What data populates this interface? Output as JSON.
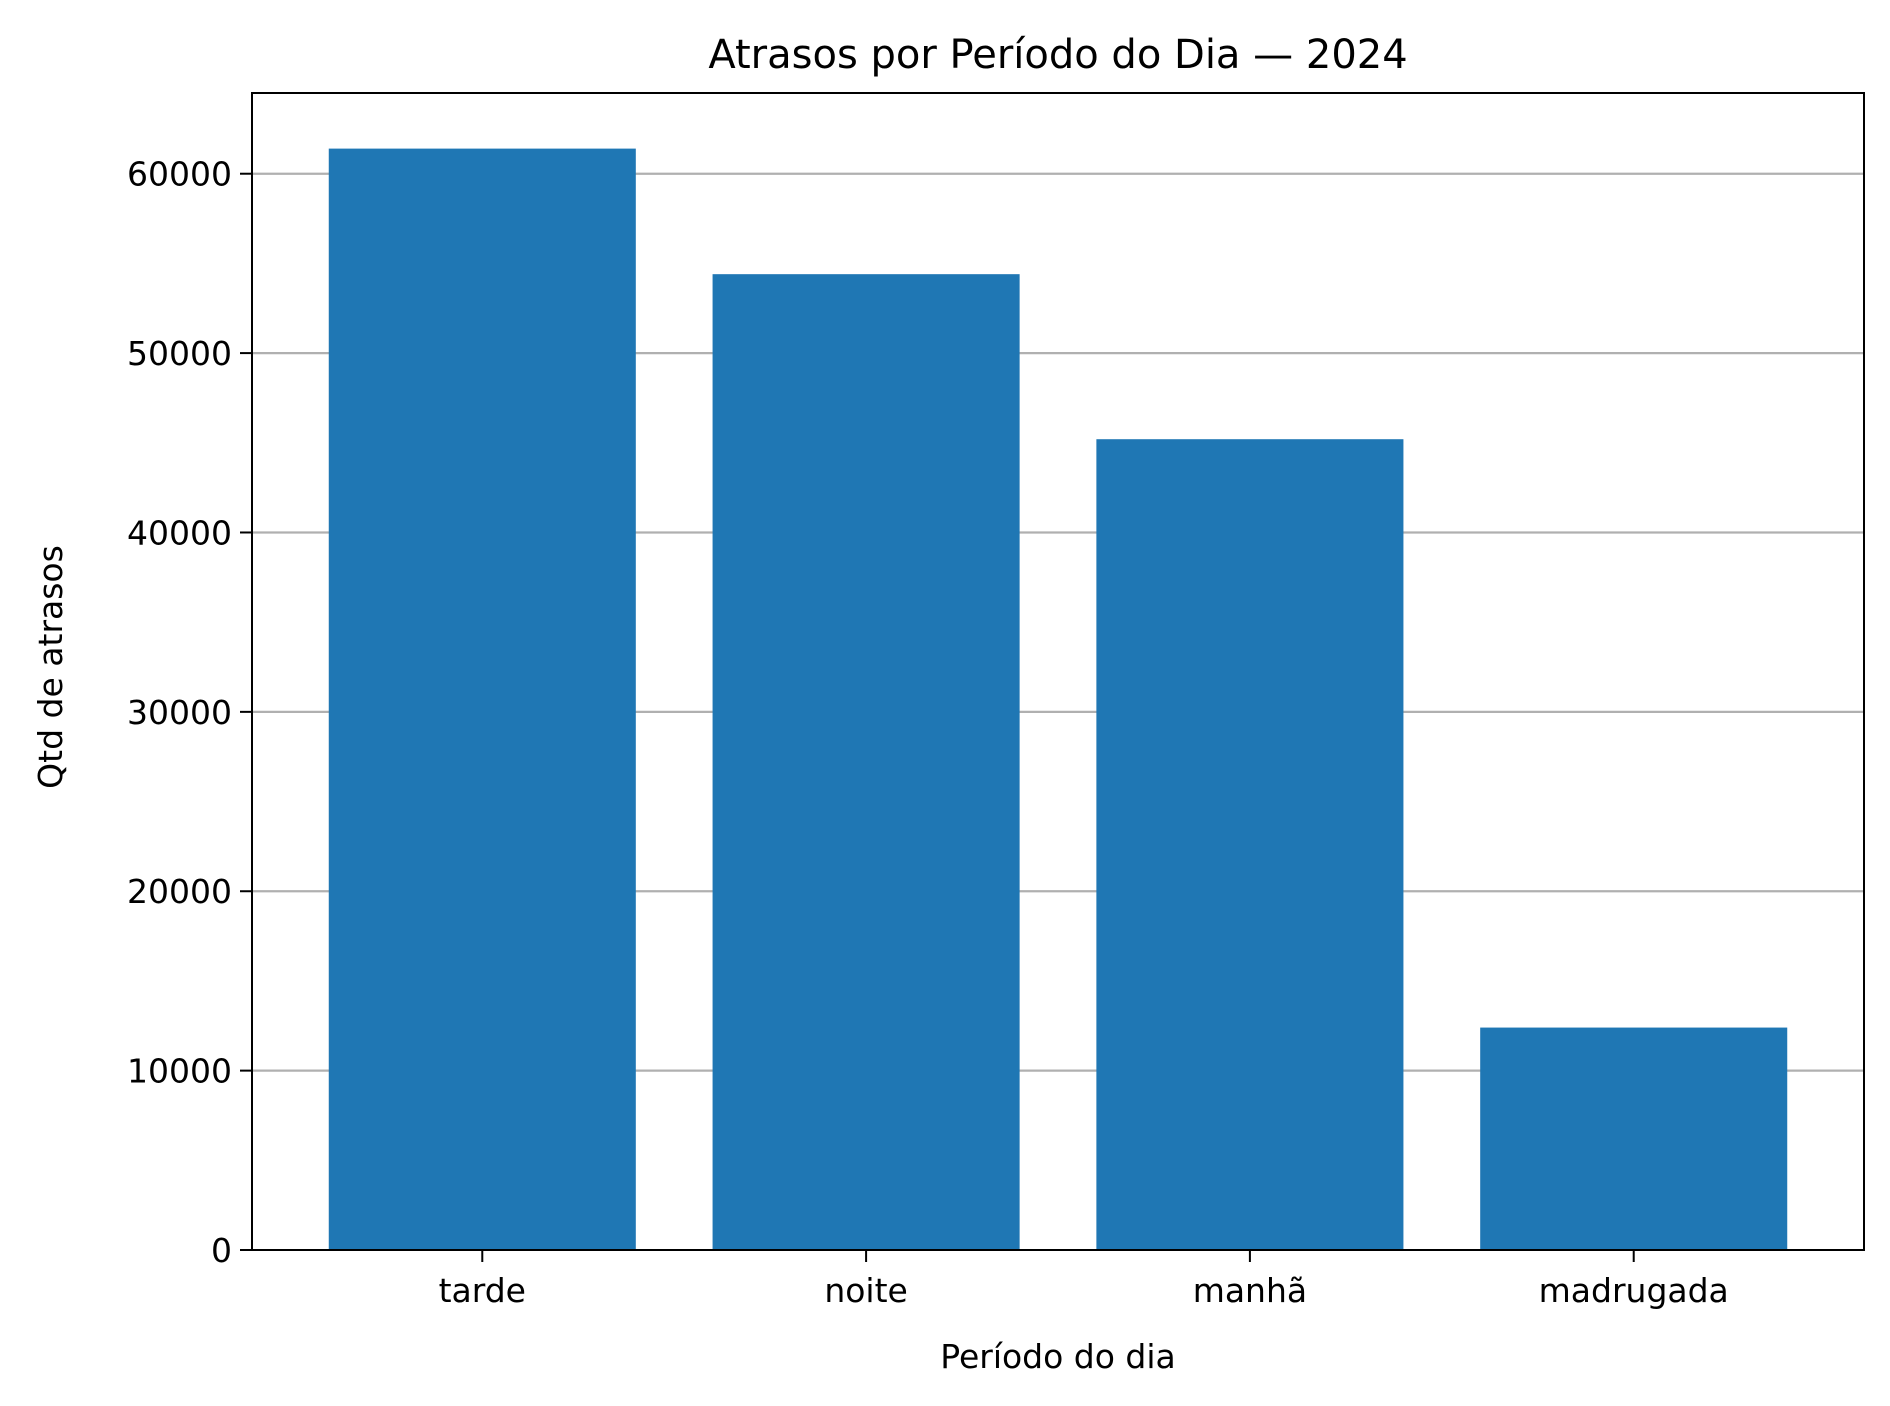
{
  "chart_data": {
    "type": "bar",
    "title": "Atrasos por Período do Dia — 2024",
    "xlabel": "Período do dia",
    "ylabel": "Qtd de atrasos",
    "categories": [
      "tarde",
      "noite",
      "manhã",
      "madrugada"
    ],
    "values": [
      61400,
      54400,
      45200,
      12400
    ],
    "ylim": [
      0,
      64500
    ],
    "yticks": [
      0,
      10000,
      20000,
      30000,
      40000,
      50000,
      60000
    ],
    "ytick_labels": [
      "0",
      "10000",
      "20000",
      "30000",
      "40000",
      "50000",
      "60000"
    ],
    "grid": "horizontal",
    "colors": {
      "bar": "#1f77b4",
      "grid": "#b0b0b0",
      "axis": "#000000"
    }
  }
}
